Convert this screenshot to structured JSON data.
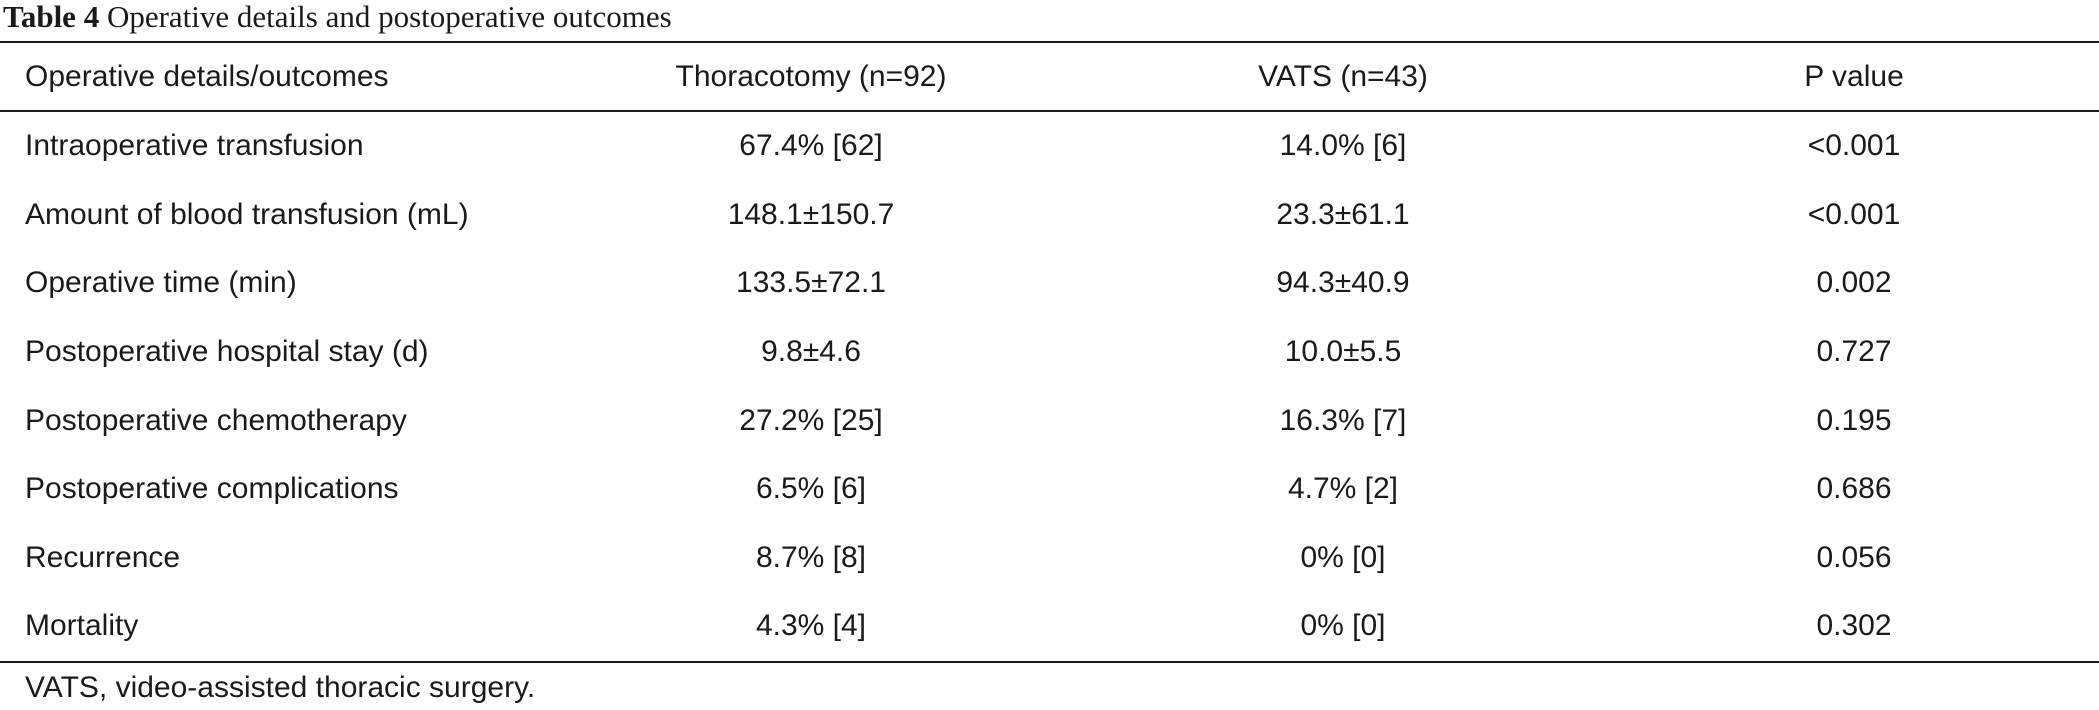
{
  "caption": {
    "label": "Table 4",
    "title": "Operative details and postoperative outcomes"
  },
  "table": {
    "headers": [
      "Operative details/outcomes",
      "Thoracotomy (n=92)",
      "VATS (n=43)",
      "P value"
    ],
    "rows": [
      [
        "Intraoperative transfusion",
        "67.4% [62]",
        "14.0% [6]",
        "<0.001"
      ],
      [
        "Amount of blood transfusion (mL)",
        "148.1±150.7",
        "23.3±61.1",
        "<0.001"
      ],
      [
        "Operative time (min)",
        "133.5±72.1",
        "94.3±40.9",
        "0.002"
      ],
      [
        "Postoperative hospital stay (d)",
        "9.8±4.6",
        "10.0±5.5",
        "0.727"
      ],
      [
        "Postoperative chemotherapy",
        "27.2% [25]",
        "16.3% [7]",
        "0.195"
      ],
      [
        "Postoperative complications",
        "6.5% [6]",
        "4.7% [2]",
        "0.686"
      ],
      [
        "Recurrence",
        "8.7% [8]",
        "0% [0]",
        "0.056"
      ],
      [
        "Mortality",
        "4.3% [4]",
        "0% [0]",
        "0.302"
      ]
    ]
  },
  "footnote": "VATS, video-assisted thoracic surgery."
}
